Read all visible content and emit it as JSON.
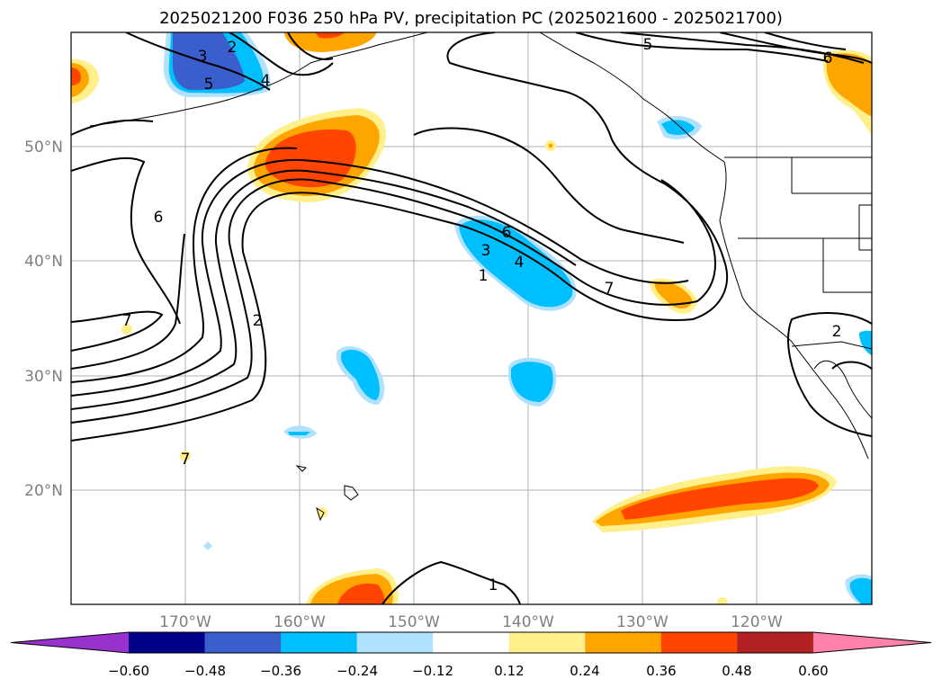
{
  "title": "2025021200 F036 250 hPa PV, precipitation PC (2025021600 - 2025021700)",
  "map": {
    "lon_range": [
      -180,
      -110
    ],
    "lat_range": [
      10,
      60
    ],
    "lat_ticks": [
      "20°N",
      "30°N",
      "40°N",
      "50°N"
    ],
    "lon_ticks": [
      "170°W",
      "160°W",
      "150°W",
      "140°W",
      "130°W",
      "120°W"
    ],
    "contour_labels": [
      "2",
      "3",
      "5",
      "4",
      "5",
      "6",
      "6",
      "6",
      "3",
      "4",
      "1",
      "7",
      "7",
      "2",
      "2",
      "7",
      "1"
    ]
  },
  "colorbar": {
    "ticks": [
      "−0.60",
      "−0.48",
      "−0.36",
      "−0.24",
      "−0.12",
      "0.12",
      "0.24",
      "0.36",
      "0.48",
      "0.60"
    ],
    "colors": [
      "#9932cc",
      "#00008b",
      "#3a5fcd",
      "#00bfff",
      "#b0e2ff",
      "#ffffff",
      "#fff08c",
      "#ffa500",
      "#ff4500",
      "#b22222",
      "#ff82ab"
    ]
  }
}
